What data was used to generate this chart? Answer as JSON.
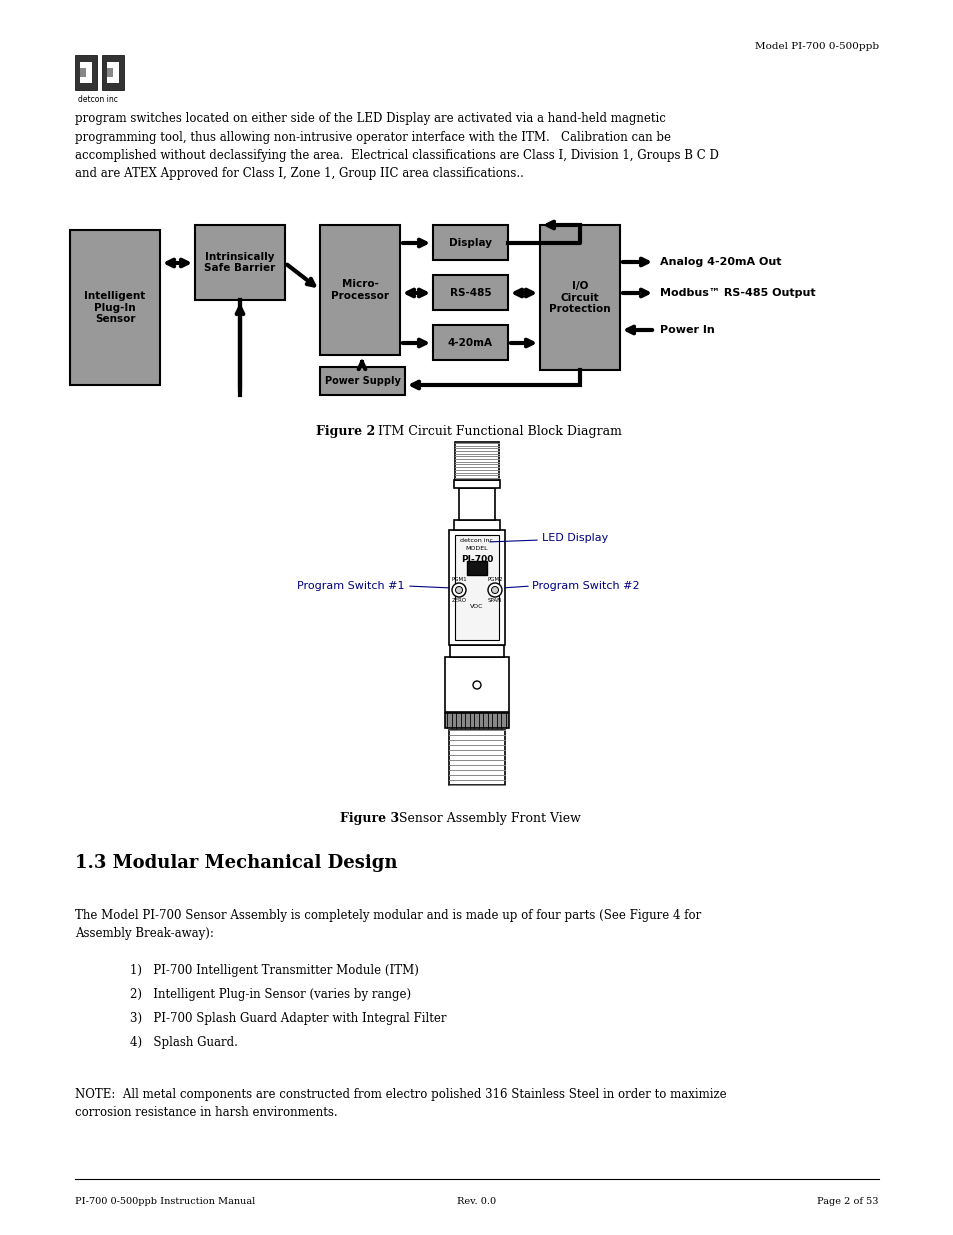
{
  "bg_color": "#ffffff",
  "page_width": 9.54,
  "page_height": 12.35,
  "dpi": 100,
  "header_right": "Model PI-700 0-500ppb",
  "body_text_line1": "program switches located on either side of the LED Display are activated via a hand-held magnetic",
  "body_text_line2": "programming tool, thus allowing non-intrusive operator interface with the ITM.   Calibration can be",
  "body_text_line3": "accomplished without declassifying the area.  Electrical classifications are Class I, Division 1, Groups B C D",
  "body_text_line4": "and are ATEX Approved for Class I, Zone 1, Group IIC area classifications..",
  "fig2_bold": "Figure 2",
  "fig2_rest": " ITM Circuit Functional Block Diagram",
  "fig3_bold": "Figure 3",
  "fig3_rest": " Sensor Assembly Front View",
  "section_title": "1.3 Modular Mechanical Design",
  "para1_line1": "The Model PI-700 Sensor Assembly is completely modular and is made up of four parts (See Figure 4 for",
  "para1_line2": "Assembly Break-away):",
  "list_items": [
    "1)   PI-700 Intelligent Transmitter Module (ITM)",
    "2)   Intelligent Plug-in Sensor (varies by range)",
    "3)   PI-700 Splash Guard Adapter with Integral Filter",
    "4)   Splash Guard."
  ],
  "note_line1": "NOTE:  All metal components are constructed from electro polished 316 Stainless Steel in order to maximize",
  "note_line2": "corrosion resistance in harsh environments.",
  "footer_left": "PI-700 0-500ppb Instruction Manual",
  "footer_center": "Rev. 0.0",
  "footer_right": "Page 2 of 53",
  "gray": "#999999",
  "blue": "#000080",
  "black": "#000000",
  "white": "#ffffff"
}
